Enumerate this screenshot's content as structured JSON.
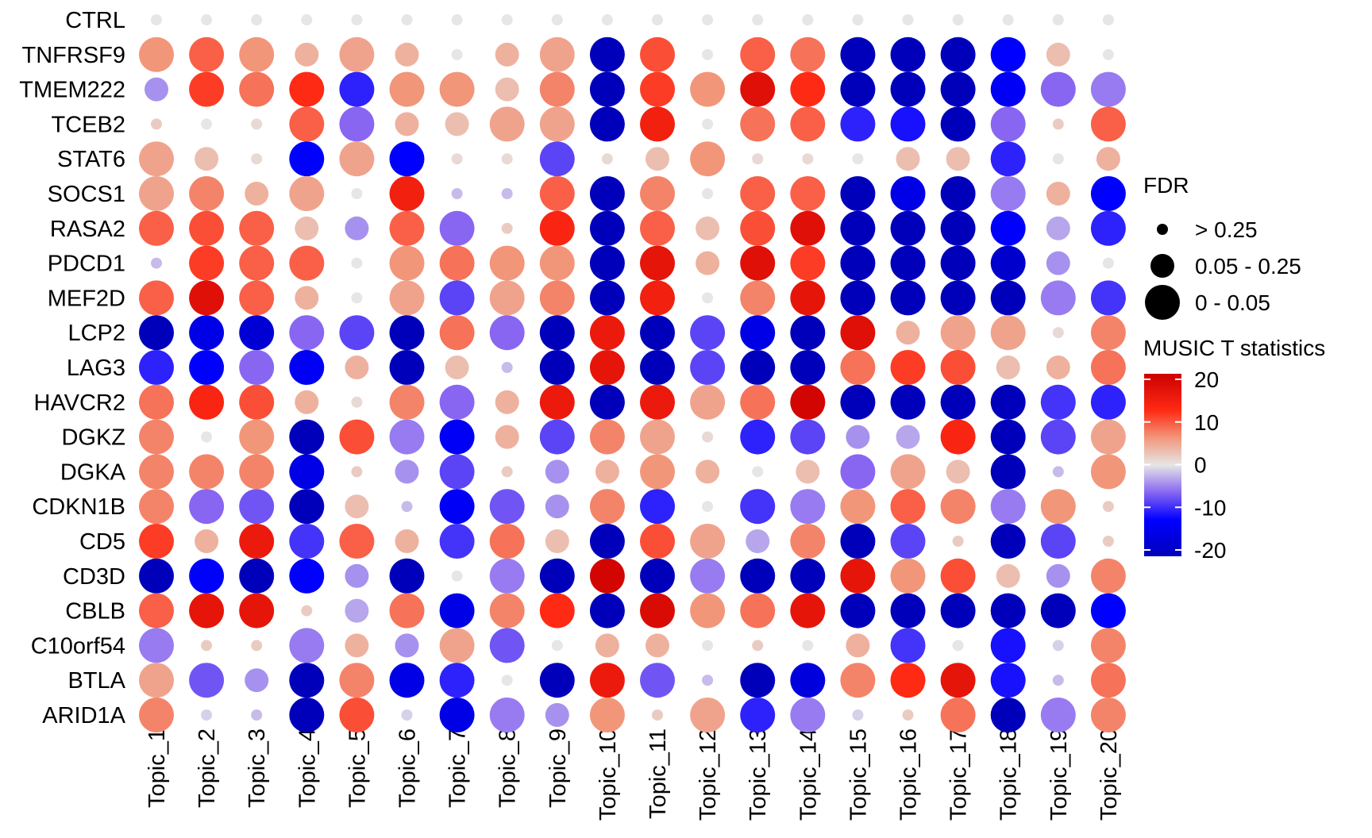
{
  "chart_data": {
    "type": "scatter",
    "title": "",
    "xlabel": "",
    "ylabel": "",
    "x_categories": [
      "Topic_1",
      "Topic_2",
      "Topic_3",
      "Topic_4",
      "Topic_5",
      "Topic_6",
      "Topic_7",
      "Topic_8",
      "Topic_9",
      "Topic_10",
      "Topic_11",
      "Topic_12",
      "Topic_13",
      "Topic_14",
      "Topic_15",
      "Topic_16",
      "Topic_17",
      "Topic_18",
      "Topic_19",
      "Topic_20"
    ],
    "y_categories": [
      "CTRL",
      "TNFRSF9",
      "TMEM222",
      "TCEB2",
      "STAT6",
      "SOCS1",
      "RASA2",
      "PDCD1",
      "MEF2D",
      "LCP2",
      "LAG3",
      "HAVCR2",
      "DGKZ",
      "DGKA",
      "CDKN1B",
      "CD5",
      "CD3D",
      "CBLB",
      "C10orf54",
      "BTLA",
      "ARID1A"
    ],
    "t_values": [
      [
        0,
        0,
        0,
        0,
        0,
        0,
        0,
        0,
        0,
        0,
        0,
        0,
        0,
        0,
        0,
        0,
        0,
        0,
        0,
        0
      ],
      [
        6,
        9,
        6,
        4,
        5,
        4,
        0,
        4,
        5,
        -20,
        10,
        0,
        9,
        8,
        -20,
        -20,
        -20,
        -12,
        3,
        0
      ],
      [
        -4,
        11,
        8,
        12,
        -10,
        6,
        6,
        3,
        7,
        -20,
        11,
        6,
        17,
        12,
        -20,
        -20,
        -20,
        -13,
        -6,
        -5
      ],
      [
        2,
        0,
        1,
        9,
        -6,
        4,
        3,
        5,
        5,
        -20,
        14,
        0,
        8,
        9,
        -10,
        -11,
        -20,
        -6,
        2,
        9
      ],
      [
        5,
        3,
        1,
        -12,
        5,
        -12,
        1,
        1,
        -8,
        1,
        3,
        6,
        1,
        1,
        0,
        3,
        3,
        -10,
        0,
        4
      ],
      [
        5,
        7,
        4,
        5,
        0,
        14,
        -2,
        -2,
        9,
        -20,
        7,
        0,
        9,
        9,
        -20,
        -15,
        -20,
        -5,
        4,
        -12
      ],
      [
        9,
        10,
        9,
        3,
        -4,
        9,
        -6,
        2,
        13,
        -20,
        9,
        3,
        10,
        17,
        -20,
        -20,
        -20,
        -12,
        -3,
        -10
      ],
      [
        -2,
        11,
        9,
        9,
        0,
        6,
        8,
        6,
        6,
        -20,
        16,
        4,
        17,
        11,
        -20,
        -20,
        -20,
        -18,
        -4,
        0
      ],
      [
        9,
        17,
        9,
        4,
        0,
        5,
        -8,
        5,
        7,
        -20,
        14,
        0,
        7,
        16,
        -20,
        -20,
        -20,
        -20,
        -5,
        -9
      ],
      [
        -20,
        -15,
        -17,
        -6,
        -8,
        -20,
        8,
        -6,
        -20,
        15,
        -20,
        -8,
        -15,
        -20,
        17,
        4,
        5,
        5,
        1,
        7
      ],
      [
        -10,
        -12,
        -6,
        -13,
        4,
        -20,
        3,
        -2,
        -20,
        16,
        -20,
        -8,
        -20,
        -20,
        8,
        11,
        10,
        3,
        4,
        8
      ],
      [
        8,
        13,
        10,
        4,
        1,
        7,
        -6,
        4,
        15,
        -20,
        15,
        5,
        8,
        19,
        -20,
        -20,
        -20,
        -20,
        -9,
        -10
      ],
      [
        7,
        0,
        6,
        -20,
        10,
        -5,
        -13,
        4,
        -8,
        7,
        5,
        1,
        -10,
        -8,
        -4,
        -3,
        13,
        -20,
        -8,
        5
      ],
      [
        7,
        7,
        7,
        -15,
        2,
        -4,
        -8,
        2,
        -4,
        4,
        6,
        4,
        0,
        3,
        -6,
        5,
        3,
        -20,
        -2,
        6
      ],
      [
        7,
        -6,
        -7,
        -20,
        3,
        -2,
        -13,
        -7,
        -4,
        7,
        -10,
        0,
        -9,
        -5,
        6,
        9,
        7,
        -5,
        6,
        2
      ],
      [
        11,
        4,
        15,
        -9,
        9,
        4,
        -9,
        8,
        3,
        -20,
        10,
        5,
        -3,
        7,
        -20,
        -8,
        2,
        -20,
        -8,
        2
      ],
      [
        -20,
        -12,
        -20,
        -12,
        -4,
        -20,
        0,
        -5,
        -20,
        19,
        -20,
        -5,
        -20,
        -20,
        16,
        6,
        10,
        3,
        -4,
        7
      ],
      [
        9,
        16,
        16,
        2,
        -3,
        8,
        -15,
        7,
        12,
        -20,
        18,
        6,
        8,
        16,
        -20,
        -20,
        -20,
        -20,
        -20,
        -12
      ],
      [
        -5,
        2,
        2,
        -5,
        4,
        -4,
        5,
        -7,
        0,
        4,
        4,
        0,
        2,
        0,
        4,
        -9,
        0,
        -11,
        -1,
        7
      ],
      [
        5,
        -7,
        -4,
        -20,
        7,
        -15,
        -10,
        0,
        -20,
        15,
        -7,
        -2,
        -20,
        -16,
        7,
        12,
        16,
        -11,
        -2,
        8
      ],
      [
        7,
        -1,
        -2,
        -20,
        10,
        -1,
        -15,
        -5,
        -4,
        6,
        2,
        5,
        -10,
        -5,
        -1,
        2,
        8,
        -20,
        -5,
        7
      ]
    ],
    "fdr_levels": [
      "> 0.25",
      "0.05 - 0.25",
      "0 - 0.05"
    ],
    "legend": {
      "size_title": "FDR",
      "color_title": "MUSIC T statistics",
      "color_ticks": [
        "20",
        "10",
        "0",
        "-10",
        "-20"
      ],
      "position": "right"
    },
    "color_scale": {
      "min": -20,
      "max": 20,
      "stops": [
        {
          "value": -20,
          "color": "#0000bb"
        },
        {
          "value": -12,
          "color": "#0000ff"
        },
        {
          "value": -6,
          "color": "#8866f2"
        },
        {
          "value": 0,
          "color": "#e6e6e6"
        },
        {
          "value": 6,
          "color": "#f2967a"
        },
        {
          "value": 12,
          "color": "#ff2a14"
        },
        {
          "value": 20,
          "color": "#cc0000"
        }
      ]
    },
    "grid": false
  }
}
